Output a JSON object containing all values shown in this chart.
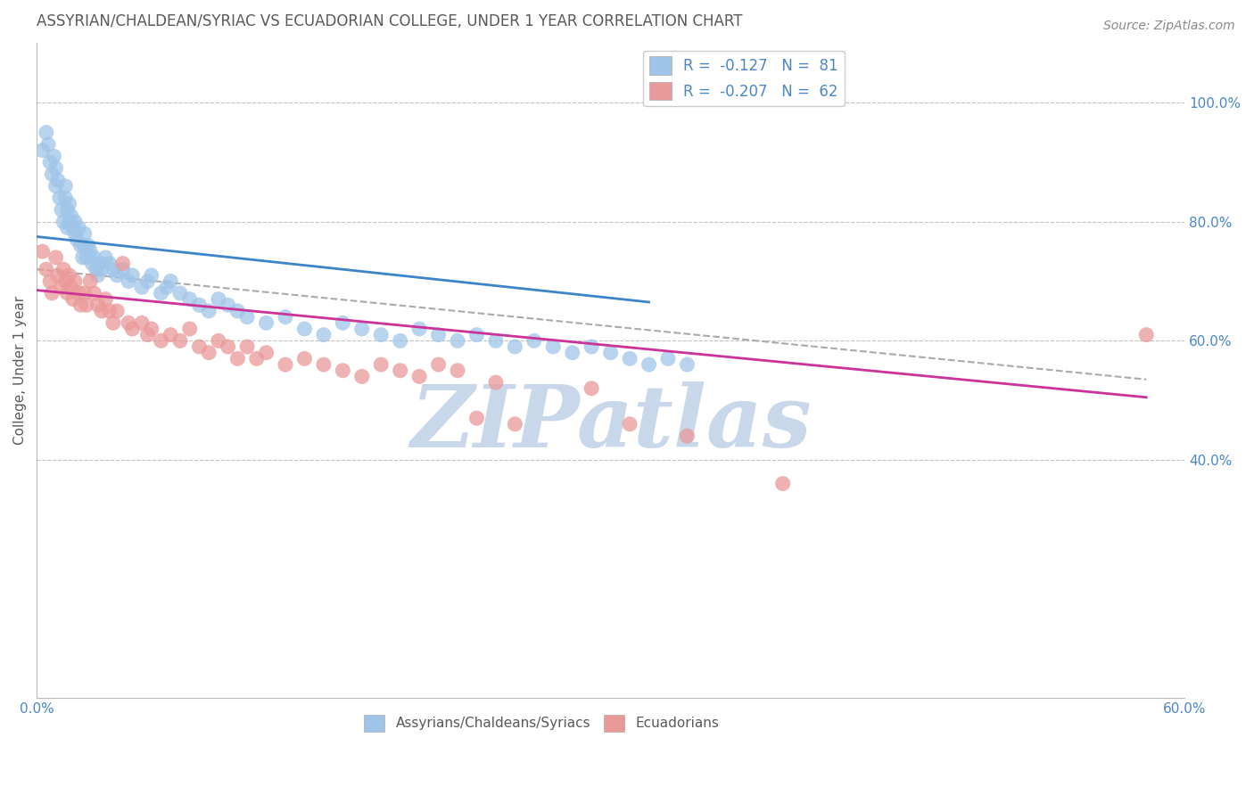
{
  "title": "ASSYRIAN/CHALDEAN/SYRIAC VS ECUADORIAN COLLEGE, UNDER 1 YEAR CORRELATION CHART",
  "source": "Source: ZipAtlas.com",
  "ylabel": "College, Under 1 year",
  "xlim": [
    0.0,
    0.6
  ],
  "ylim": [
    0.0,
    1.1
  ],
  "xtick_vals": [
    0.0,
    0.1,
    0.2,
    0.3,
    0.4,
    0.5,
    0.6
  ],
  "xtick_labels": [
    "0.0%",
    "",
    "",
    "",
    "",
    "",
    "60.0%"
  ],
  "right_ytick_vals": [
    0.4,
    0.6,
    0.8,
    1.0
  ],
  "right_ytick_labels": [
    "40.0%",
    "60.0%",
    "80.0%",
    "100.0%"
  ],
  "legend_R1": "R =  -0.127   N =  81",
  "legend_R2": "R =  -0.207   N =  62",
  "color_blue": "#9fc5e8",
  "color_pink": "#ea9999",
  "color_blue_line": "#3d85c8",
  "color_pink_line": "#cc3399",
  "color_dashed": "#aaaaaa",
  "title_color": "#595959",
  "axis_color": "#4a86c8",
  "legend_text_color": "#4a86c8",
  "blue_scatter_x": [
    0.003,
    0.005,
    0.006,
    0.007,
    0.008,
    0.009,
    0.01,
    0.01,
    0.011,
    0.012,
    0.013,
    0.014,
    0.015,
    0.015,
    0.016,
    0.016,
    0.017,
    0.017,
    0.018,
    0.019,
    0.02,
    0.02,
    0.021,
    0.022,
    0.023,
    0.024,
    0.025,
    0.025,
    0.026,
    0.027,
    0.028,
    0.029,
    0.03,
    0.031,
    0.032,
    0.033,
    0.034,
    0.036,
    0.038,
    0.04,
    0.042,
    0.045,
    0.048,
    0.05,
    0.055,
    0.058,
    0.06,
    0.065,
    0.068,
    0.07,
    0.075,
    0.08,
    0.085,
    0.09,
    0.095,
    0.1,
    0.105,
    0.11,
    0.12,
    0.13,
    0.14,
    0.15,
    0.16,
    0.17,
    0.18,
    0.19,
    0.2,
    0.21,
    0.22,
    0.23,
    0.24,
    0.25,
    0.26,
    0.27,
    0.28,
    0.29,
    0.3,
    0.31,
    0.32,
    0.33,
    0.34
  ],
  "blue_scatter_y": [
    0.92,
    0.95,
    0.93,
    0.9,
    0.88,
    0.91,
    0.86,
    0.89,
    0.87,
    0.84,
    0.82,
    0.8,
    0.86,
    0.84,
    0.82,
    0.79,
    0.8,
    0.83,
    0.81,
    0.79,
    0.78,
    0.8,
    0.77,
    0.79,
    0.76,
    0.74,
    0.78,
    0.76,
    0.74,
    0.76,
    0.75,
    0.73,
    0.74,
    0.72,
    0.71,
    0.73,
    0.72,
    0.74,
    0.73,
    0.72,
    0.71,
    0.72,
    0.7,
    0.71,
    0.69,
    0.7,
    0.71,
    0.68,
    0.69,
    0.7,
    0.68,
    0.67,
    0.66,
    0.65,
    0.67,
    0.66,
    0.65,
    0.64,
    0.63,
    0.64,
    0.62,
    0.61,
    0.63,
    0.62,
    0.61,
    0.6,
    0.62,
    0.61,
    0.6,
    0.61,
    0.6,
    0.59,
    0.6,
    0.59,
    0.58,
    0.59,
    0.58,
    0.57,
    0.56,
    0.57,
    0.56
  ],
  "pink_scatter_x": [
    0.003,
    0.005,
    0.007,
    0.008,
    0.01,
    0.011,
    0.013,
    0.014,
    0.015,
    0.016,
    0.017,
    0.018,
    0.019,
    0.02,
    0.022,
    0.023,
    0.025,
    0.026,
    0.028,
    0.03,
    0.032,
    0.034,
    0.036,
    0.038,
    0.04,
    0.042,
    0.045,
    0.048,
    0.05,
    0.055,
    0.058,
    0.06,
    0.065,
    0.07,
    0.075,
    0.08,
    0.085,
    0.09,
    0.095,
    0.1,
    0.105,
    0.11,
    0.115,
    0.12,
    0.13,
    0.14,
    0.15,
    0.16,
    0.17,
    0.18,
    0.19,
    0.2,
    0.21,
    0.22,
    0.23,
    0.24,
    0.25,
    0.29,
    0.31,
    0.34,
    0.39,
    0.58
  ],
  "pink_scatter_y": [
    0.75,
    0.72,
    0.7,
    0.68,
    0.74,
    0.71,
    0.69,
    0.72,
    0.7,
    0.68,
    0.71,
    0.69,
    0.67,
    0.7,
    0.68,
    0.66,
    0.68,
    0.66,
    0.7,
    0.68,
    0.66,
    0.65,
    0.67,
    0.65,
    0.63,
    0.65,
    0.73,
    0.63,
    0.62,
    0.63,
    0.61,
    0.62,
    0.6,
    0.61,
    0.6,
    0.62,
    0.59,
    0.58,
    0.6,
    0.59,
    0.57,
    0.59,
    0.57,
    0.58,
    0.56,
    0.57,
    0.56,
    0.55,
    0.54,
    0.56,
    0.55,
    0.54,
    0.56,
    0.55,
    0.47,
    0.53,
    0.46,
    0.52,
    0.46,
    0.44,
    0.36,
    0.61
  ],
  "blue_line_x": [
    0.0,
    0.32
  ],
  "blue_line_y": [
    0.775,
    0.665
  ],
  "pink_line_x": [
    0.0,
    0.58
  ],
  "pink_line_y": [
    0.685,
    0.505
  ],
  "dashed_line_x": [
    0.0,
    0.58
  ],
  "dashed_line_y": [
    0.72,
    0.535
  ],
  "watermark": "ZIPatlas",
  "watermark_color": "#c8d8ea",
  "background_color": "#ffffff",
  "grid_color": "#c0c0c0",
  "grid_style": "--"
}
